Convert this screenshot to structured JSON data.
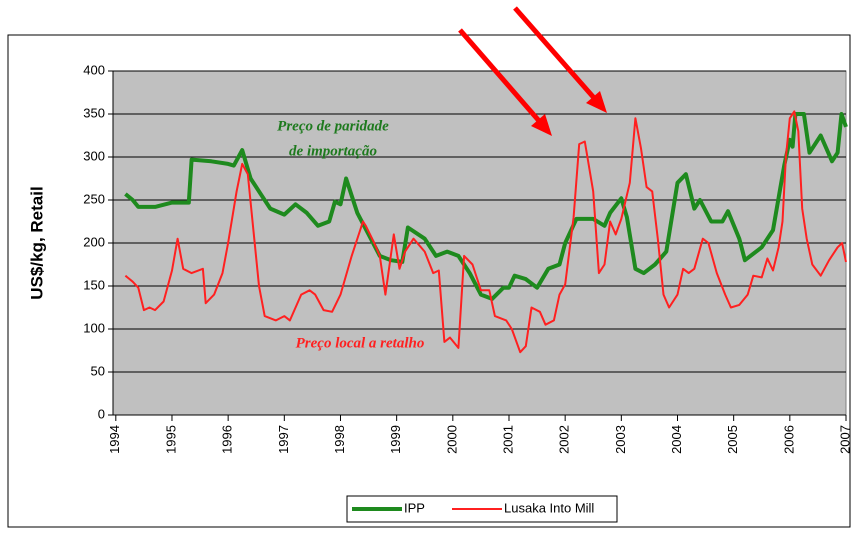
{
  "chart_data": {
    "type": "line",
    "ylabel": "US$/kg, Retail",
    "annotations": [
      "Preço de paridade",
      "de importação",
      "Preço local a retalho"
    ],
    "xlim": [
      1993.95,
      2007
    ],
    "xticks": [
      1994,
      1995,
      1996,
      1997,
      1998,
      1999,
      2000,
      2001,
      2002,
      2003,
      2004,
      2005,
      2006,
      2007
    ],
    "ylim": [
      0,
      400
    ],
    "yticks": [
      0,
      50,
      100,
      150,
      200,
      250,
      300,
      350,
      400
    ],
    "grid": true,
    "legend": "bottom",
    "series": [
      {
        "name": "IPP",
        "color": "#1e8a1e",
        "x": [
          1994.17,
          1994.3,
          1994.4,
          1994.7,
          1995.0,
          1995.3,
          1995.35,
          1995.7,
          1996.0,
          1996.1,
          1996.25,
          1996.4,
          1996.6,
          1996.75,
          1997.0,
          1997.2,
          1997.4,
          1997.6,
          1997.8,
          1997.9,
          1998.0,
          1998.1,
          1998.3,
          1998.5,
          1998.7,
          1998.9,
          1999.1,
          1999.2,
          1999.5,
          1999.7,
          1999.9,
          2000.1,
          2000.3,
          2000.5,
          2000.7,
          2000.9,
          2001.0,
          2001.1,
          2001.3,
          2001.5,
          2001.7,
          2001.9,
          2002.0,
          2002.2,
          2002.5,
          2002.7,
          2002.8,
          2003.0,
          2003.1,
          2003.25,
          2003.4,
          2003.6,
          2003.8,
          2004.0,
          2004.15,
          2004.3,
          2004.4,
          2004.6,
          2004.8,
          2004.9,
          2005.1,
          2005.2,
          2005.5,
          2005.7,
          2005.9,
          2006.0,
          2006.05,
          2006.1,
          2006.25,
          2006.35,
          2006.55,
          2006.75,
          2006.85,
          2006.92,
          2007.0
        ],
        "values": [
          257,
          250,
          242,
          242,
          247,
          247,
          297,
          295,
          292,
          290,
          308,
          275,
          255,
          240,
          233,
          245,
          235,
          220,
          225,
          248,
          245,
          275,
          235,
          210,
          185,
          180,
          178,
          218,
          205,
          185,
          190,
          185,
          165,
          140,
          135,
          148,
          148,
          162,
          158,
          148,
          170,
          175,
          200,
          228,
          228,
          220,
          235,
          252,
          230,
          170,
          165,
          175,
          190,
          270,
          280,
          240,
          250,
          225,
          225,
          237,
          205,
          180,
          195,
          215,
          290,
          320,
          312,
          350,
          350,
          305,
          325,
          295,
          305,
          350,
          335
        ]
      },
      {
        "name": "Lusaka Into Mill",
        "color": "#ff2020",
        "x": [
          1994.17,
          1994.3,
          1994.4,
          1994.5,
          1994.6,
          1994.7,
          1994.85,
          1995.0,
          1995.1,
          1995.2,
          1995.35,
          1995.55,
          1995.6,
          1995.75,
          1995.9,
          1996.0,
          1996.15,
          1996.25,
          1996.35,
          1996.45,
          1996.55,
          1996.65,
          1996.85,
          1997.0,
          1997.1,
          1997.3,
          1997.45,
          1997.55,
          1997.7,
          1997.85,
          1998.0,
          1998.2,
          1998.4,
          1998.45,
          1998.6,
          1998.7,
          1998.8,
          1998.95,
          1999.05,
          1999.15,
          1999.3,
          1999.5,
          1999.65,
          1999.75,
          1999.85,
          1999.95,
          2000.1,
          2000.2,
          2000.35,
          2000.5,
          2000.65,
          2000.75,
          2000.95,
          2001.05,
          2001.2,
          2001.3,
          2001.4,
          2001.55,
          2001.65,
          2001.8,
          2001.9,
          2002.0,
          2002.15,
          2002.25,
          2002.35,
          2002.5,
          2002.6,
          2002.7,
          2002.8,
          2002.9,
          2003.0,
          2003.15,
          2003.25,
          2003.35,
          2003.45,
          2003.55,
          2003.65,
          2003.75,
          2003.85,
          2004.0,
          2004.1,
          2004.2,
          2004.3,
          2004.45,
          2004.55,
          2004.7,
          2004.85,
          2004.95,
          2005.1,
          2005.25,
          2005.35,
          2005.5,
          2005.6,
          2005.7,
          2005.8,
          2005.87,
          2005.93,
          2006.0,
          2006.08,
          2006.15,
          2006.22,
          2006.3,
          2006.4,
          2006.55,
          2006.7,
          2006.85,
          2006.93,
          2007.0
        ],
        "values": [
          162,
          155,
          148,
          122,
          125,
          122,
          132,
          168,
          205,
          170,
          165,
          170,
          130,
          140,
          165,
          200,
          260,
          292,
          280,
          215,
          150,
          115,
          110,
          115,
          110,
          140,
          145,
          140,
          122,
          120,
          140,
          185,
          225,
          220,
          200,
          185,
          140,
          210,
          170,
          190,
          205,
          190,
          165,
          168,
          85,
          90,
          78,
          185,
          175,
          145,
          145,
          115,
          110,
          100,
          73,
          80,
          125,
          120,
          105,
          110,
          140,
          152,
          230,
          315,
          318,
          260,
          165,
          175,
          225,
          210,
          228,
          270,
          345,
          310,
          265,
          260,
          205,
          140,
          125,
          140,
          170,
          165,
          170,
          205,
          200,
          165,
          140,
          125,
          128,
          140,
          162,
          160,
          182,
          168,
          195,
          225,
          300,
          345,
          353,
          330,
          240,
          205,
          175,
          162,
          180,
          195,
          200,
          178
        ]
      }
    ]
  }
}
